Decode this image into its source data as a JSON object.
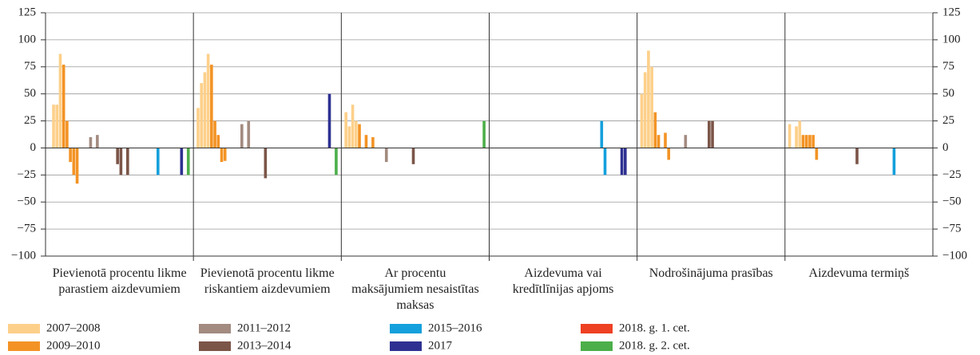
{
  "chart_data": {
    "type": "bar",
    "categories": [
      "Pievienotā procentu likme parastiem aizdevumiem",
      "Pievienotā procentu likme riskantiem aizdevumiem",
      "Ar procentu maksājumiem nesaistītas maksas",
      "Aizdevuma vai kredītlīnijas apjoms",
      "Nodrošinājuma prasības",
      "Aizdevuma termiņš"
    ],
    "series": [
      {
        "name": "2007–2008",
        "color": "#fdd08a",
        "values": [
          [
            0,
            40,
            40,
            87
          ],
          [
            37,
            60,
            70,
            87
          ],
          [
            33,
            20,
            40,
            25
          ],
          [
            0,
            0,
            0,
            0
          ],
          [
            50,
            70,
            90,
            75
          ],
          [
            22,
            0,
            20,
            25
          ]
        ]
      },
      {
        "name": "2009–2010",
        "color": "#f39325",
        "values": [
          [
            77,
            25,
            -13,
            -25,
            -33,
            0,
            0,
            0
          ],
          [
            77,
            25,
            12,
            -13,
            -12,
            0,
            0,
            0
          ],
          [
            22,
            0,
            12,
            0,
            10,
            0,
            0,
            0
          ],
          [
            0,
            0,
            0,
            0,
            0,
            0,
            0,
            0
          ],
          [
            33,
            12,
            0,
            14,
            -11,
            0,
            0,
            0
          ],
          [
            12,
            12,
            12,
            12,
            -11,
            0,
            0,
            0
          ]
        ]
      },
      {
        "name": "2011–2012",
        "color": "#a38b80",
        "values": [
          [
            10,
            0,
            12,
            0,
            0,
            0,
            0,
            0
          ],
          [
            0,
            22,
            0,
            25,
            0,
            0,
            0,
            0
          ],
          [
            -13,
            0,
            0,
            0,
            0,
            0,
            0,
            0
          ],
          [
            0,
            0,
            0,
            0,
            0,
            0,
            0,
            0
          ],
          [
            0,
            12,
            0,
            0,
            0,
            0,
            0,
            0
          ],
          [
            0,
            0,
            0,
            0,
            0,
            0,
            0,
            0
          ]
        ]
      },
      {
        "name": "2013–2014",
        "color": "#7b5548",
        "values": [
          [
            -15,
            -25,
            0,
            -25,
            0,
            0,
            0,
            0
          ],
          [
            -28,
            0,
            0,
            0,
            0,
            0,
            0,
            0
          ],
          [
            -15,
            0,
            0,
            0,
            0,
            0,
            0,
            0
          ],
          [
            0,
            0,
            0,
            0,
            0,
            0,
            0,
            0
          ],
          [
            25,
            25,
            0,
            0,
            0,
            0,
            0,
            0
          ],
          [
            -15,
            0,
            0,
            0,
            0,
            0,
            0,
            0
          ]
        ]
      },
      {
        "name": "2015–2016",
        "color": "#14a0dc",
        "values": [
          [
            0,
            0,
            0,
            0,
            -25,
            0,
            0,
            0
          ],
          [
            0,
            0,
            0,
            0,
            0,
            0,
            0,
            0
          ],
          [
            0,
            0,
            0,
            0,
            0,
            0,
            0,
            0
          ],
          [
            0,
            0,
            0,
            0,
            25,
            -25,
            0,
            0
          ],
          [
            0,
            0,
            0,
            0,
            0,
            0,
            0,
            0
          ],
          [
            0,
            0,
            0,
            -25,
            0,
            0,
            0,
            0
          ]
        ]
      },
      {
        "name": "2017",
        "color": "#2e3191",
        "values": [
          [
            0,
            0,
            0,
            -25
          ],
          [
            0,
            0,
            0,
            50
          ],
          [
            0,
            0,
            0,
            0
          ],
          [
            0,
            0,
            -25,
            -25
          ],
          [
            0,
            0,
            0,
            0
          ],
          [
            0,
            0,
            0,
            0
          ]
        ]
      },
      {
        "name": "2018. g. 1. cet.",
        "color": "#ee4023",
        "values": [
          [
            0
          ],
          [
            0
          ],
          [
            0
          ],
          [
            0
          ],
          [
            0
          ],
          [
            0
          ]
        ]
      },
      {
        "name": "2018. g. 2. cet.",
        "color": "#4caf4a",
        "values": [
          [
            -25
          ],
          [
            -25
          ],
          [
            25
          ],
          [
            0
          ],
          [
            0
          ],
          [
            0
          ]
        ]
      }
    ],
    "ylim": [
      -100,
      125
    ],
    "yticks": [
      {
        "value": -100,
        "label": "−100"
      },
      {
        "value": -75,
        "label": "−75"
      },
      {
        "value": -50,
        "label": "−50"
      },
      {
        "value": -25,
        "label": "−25"
      },
      0,
      25,
      50,
      75,
      100,
      125
    ],
    "grid": true
  }
}
